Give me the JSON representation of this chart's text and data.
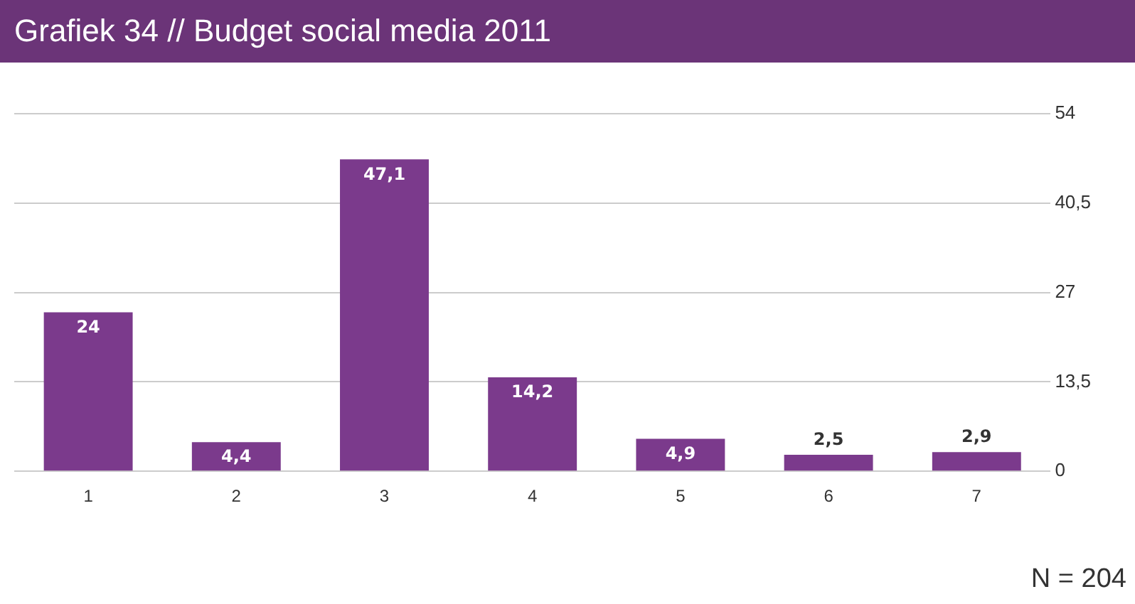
{
  "chart_data": {
    "type": "bar",
    "title": "Grafiek 34 // Budget social media 2011",
    "categories": [
      "1",
      "2",
      "3",
      "4",
      "5",
      "6",
      "7"
    ],
    "values": [
      24,
      4.4,
      47.1,
      14.2,
      4.9,
      2.5,
      2.9
    ],
    "value_labels": [
      "24",
      "4,4",
      "47,1",
      "14,2",
      "4,9",
      "2,5",
      "2,9"
    ],
    "color": "#7b3a8c",
    "ylim": [
      0,
      54
    ],
    "yticks": [
      0,
      {
        "value": 13.5,
        "label": "13,5"
      },
      27,
      {
        "value": 40.5,
        "label": "40,5"
      },
      54
    ],
    "grid": "y",
    "legend": false,
    "annotations": [
      "N = 204"
    ]
  }
}
